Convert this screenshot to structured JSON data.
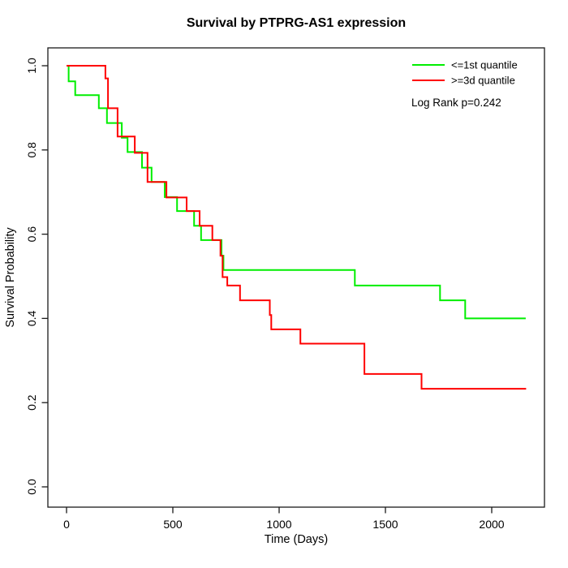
{
  "figure": {
    "background": "#ffffff",
    "axis_color": "#1a1a1a",
    "text_color": "#000000"
  },
  "chart_data": {
    "type": "line",
    "variant": "kaplan-meier-step",
    "title": "Survival by PTPRG-AS1 expression",
    "xlabel": "Time (Days)",
    "ylabel": "Survival Probability",
    "xlim": [
      0,
      2200
    ],
    "ylim": [
      0,
      1
    ],
    "xticks": [
      0,
      500,
      1000,
      1500,
      2000
    ],
    "yticks": [
      "0.0",
      "0.2",
      "0.4",
      "0.6",
      "0.8",
      "1.0"
    ],
    "grid": false,
    "legend_position": "top-right",
    "annotation": "Log Rank p=0.242",
    "series": [
      {
        "name": "<=1st quantile",
        "color": "#00ee00",
        "points": [
          [
            0,
            1.0
          ],
          [
            10,
            0.963
          ],
          [
            41,
            0.93
          ],
          [
            152,
            0.899
          ],
          [
            190,
            0.864
          ],
          [
            260,
            0.829
          ],
          [
            287,
            0.795
          ],
          [
            355,
            0.758
          ],
          [
            400,
            0.724
          ],
          [
            462,
            0.688
          ],
          [
            520,
            0.655
          ],
          [
            600,
            0.62
          ],
          [
            633,
            0.586
          ],
          [
            729,
            0.549
          ],
          [
            738,
            0.515
          ],
          [
            1356,
            0.478
          ],
          [
            1757,
            0.443
          ],
          [
            1875,
            0.4
          ],
          [
            2160,
            0.4
          ]
        ]
      },
      {
        "name": ">=3d quantile",
        "color": "#ff0000",
        "points": [
          [
            0,
            1.0
          ],
          [
            183,
            0.97
          ],
          [
            195,
            0.899
          ],
          [
            240,
            0.832
          ],
          [
            321,
            0.793
          ],
          [
            381,
            0.724
          ],
          [
            470,
            0.687
          ],
          [
            565,
            0.655
          ],
          [
            626,
            0.62
          ],
          [
            686,
            0.586
          ],
          [
            724,
            0.549
          ],
          [
            734,
            0.498
          ],
          [
            756,
            0.478
          ],
          [
            816,
            0.443
          ],
          [
            956,
            0.408
          ],
          [
            963,
            0.374
          ],
          [
            1100,
            0.34
          ],
          [
            1401,
            0.268
          ],
          [
            1670,
            0.233
          ],
          [
            2162,
            0.233
          ]
        ]
      }
    ]
  }
}
